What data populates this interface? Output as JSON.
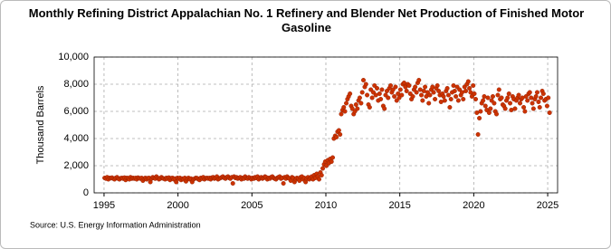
{
  "chart_data": {
    "type": "scatter",
    "title": "Monthly Refining District Appalachian No. 1 Refinery and Blender Net Production of Finished Motor Gasoline",
    "ylabel": "Thousand Barrels",
    "source": "Source: U.S. Energy Information Administration",
    "color": "#cc3300",
    "grid": true,
    "xlim": [
      1994.33,
      2025.67
    ],
    "xticks": [
      1995,
      2000,
      2005,
      2010,
      2015,
      2020,
      2025
    ],
    "ylim": [
      0,
      10000
    ],
    "yticks": [
      0,
      {
        "value": 2000,
        "label": "2,000"
      },
      {
        "value": 4000,
        "label": "4,000"
      },
      {
        "value": 6000,
        "label": "6,000"
      },
      {
        "value": 8000,
        "label": "8,000"
      },
      {
        "value": 10000,
        "label": "10,000"
      }
    ],
    "x": [
      1995.04,
      1995.13,
      1995.21,
      1995.29,
      1995.38,
      1995.46,
      1995.54,
      1995.63,
      1995.71,
      1995.79,
      1995.88,
      1995.96,
      1996.04,
      1996.13,
      1996.21,
      1996.29,
      1996.38,
      1996.46,
      1996.54,
      1996.63,
      1996.71,
      1996.79,
      1996.88,
      1996.96,
      1997.04,
      1997.13,
      1997.21,
      1997.29,
      1997.38,
      1997.46,
      1997.54,
      1997.63,
      1997.71,
      1997.79,
      1997.88,
      1997.96,
      1998.04,
      1998.13,
      1998.21,
      1998.29,
      1998.38,
      1998.46,
      1998.54,
      1998.63,
      1998.71,
      1998.79,
      1998.88,
      1998.96,
      1999.04,
      1999.13,
      1999.21,
      1999.29,
      1999.38,
      1999.46,
      1999.54,
      1999.63,
      1999.71,
      1999.79,
      1999.88,
      1999.96,
      2000.04,
      2000.13,
      2000.21,
      2000.29,
      2000.38,
      2000.46,
      2000.54,
      2000.63,
      2000.71,
      2000.79,
      2000.88,
      2000.96,
      2001.04,
      2001.13,
      2001.21,
      2001.29,
      2001.38,
      2001.46,
      2001.54,
      2001.63,
      2001.71,
      2001.79,
      2001.88,
      2001.96,
      2002.04,
      2002.13,
      2002.21,
      2002.29,
      2002.38,
      2002.46,
      2002.54,
      2002.63,
      2002.71,
      2002.79,
      2002.88,
      2002.96,
      2003.04,
      2003.13,
      2003.21,
      2003.29,
      2003.38,
      2003.46,
      2003.54,
      2003.63,
      2003.71,
      2003.79,
      2003.88,
      2003.96,
      2004.04,
      2004.13,
      2004.21,
      2004.29,
      2004.38,
      2004.46,
      2004.54,
      2004.63,
      2004.71,
      2004.79,
      2004.88,
      2004.96,
      2005.04,
      2005.13,
      2005.21,
      2005.29,
      2005.38,
      2005.46,
      2005.54,
      2005.63,
      2005.71,
      2005.79,
      2005.88,
      2005.96,
      2006.04,
      2006.13,
      2006.21,
      2006.29,
      2006.38,
      2006.46,
      2006.54,
      2006.63,
      2006.71,
      2006.79,
      2006.88,
      2006.96,
      2007.04,
      2007.13,
      2007.21,
      2007.29,
      2007.38,
      2007.46,
      2007.54,
      2007.63,
      2007.71,
      2007.79,
      2007.88,
      2007.96,
      2008.04,
      2008.13,
      2008.21,
      2008.29,
      2008.38,
      2008.46,
      2008.54,
      2008.63,
      2008.71,
      2008.79,
      2008.88,
      2008.96,
      2009.04,
      2009.13,
      2009.21,
      2009.29,
      2009.38,
      2009.46,
      2009.54,
      2009.63,
      2009.71,
      2009.79,
      2009.88,
      2009.96,
      2010.04,
      2010.13,
      2010.21,
      2010.29,
      2010.38,
      2010.46,
      2010.54,
      2010.63,
      2010.71,
      2010.79,
      2010.88,
      2010.96,
      2011.04,
      2011.13,
      2011.21,
      2011.29,
      2011.38,
      2011.46,
      2011.54,
      2011.63,
      2011.71,
      2011.79,
      2011.88,
      2011.96,
      2012.04,
      2012.13,
      2012.21,
      2012.29,
      2012.38,
      2012.46,
      2012.54,
      2012.63,
      2012.71,
      2012.79,
      2012.88,
      2012.96,
      2013.04,
      2013.13,
      2013.21,
      2013.29,
      2013.38,
      2013.46,
      2013.54,
      2013.63,
      2013.71,
      2013.79,
      2013.88,
      2013.96,
      2014.04,
      2014.13,
      2014.21,
      2014.29,
      2014.38,
      2014.46,
      2014.54,
      2014.63,
      2014.71,
      2014.79,
      2014.88,
      2014.96,
      2015.04,
      2015.13,
      2015.21,
      2015.29,
      2015.38,
      2015.46,
      2015.54,
      2015.63,
      2015.71,
      2015.79,
      2015.88,
      2015.96,
      2016.04,
      2016.13,
      2016.21,
      2016.29,
      2016.38,
      2016.46,
      2016.54,
      2016.63,
      2016.71,
      2016.79,
      2016.88,
      2016.96,
      2017.04,
      2017.13,
      2017.21,
      2017.29,
      2017.38,
      2017.46,
      2017.54,
      2017.63,
      2017.71,
      2017.79,
      2017.88,
      2017.96,
      2018.04,
      2018.13,
      2018.21,
      2018.29,
      2018.38,
      2018.46,
      2018.54,
      2018.63,
      2018.71,
      2018.79,
      2018.88,
      2018.96,
      2019.04,
      2019.13,
      2019.21,
      2019.29,
      2019.38,
      2019.46,
      2019.54,
      2019.63,
      2019.71,
      2019.79,
      2019.88,
      2019.96,
      2020.04,
      2020.13,
      2020.21,
      2020.29,
      2020.38,
      2020.46,
      2020.54,
      2020.63,
      2020.71,
      2020.79,
      2020.88,
      2020.96,
      2021.04,
      2021.13,
      2021.21,
      2021.29,
      2021.38,
      2021.46,
      2021.54,
      2021.63,
      2021.71,
      2021.79,
      2021.88,
      2021.96,
      2022.04,
      2022.13,
      2022.21,
      2022.29,
      2022.38,
      2022.46,
      2022.54,
      2022.63,
      2022.71,
      2022.79,
      2022.88,
      2022.96,
      2023.04,
      2023.13,
      2023.21,
      2023.29,
      2023.38,
      2023.46,
      2023.54,
      2023.63,
      2023.71,
      2023.79,
      2023.88,
      2023.96,
      2024.04,
      2024.13,
      2024.21,
      2024.29,
      2024.38,
      2024.46,
      2024.54,
      2024.63,
      2024.71,
      2024.79,
      2024.88,
      2024.96,
      2025.04,
      2025.13
    ],
    "values": [
      1100,
      1050,
      1150,
      1000,
      1100,
      1080,
      1120,
      1050,
      1000,
      1100,
      1150,
      1050,
      1000,
      1080,
      1100,
      1050,
      1120,
      950,
      1100,
      1080,
      1000,
      1150,
      1050,
      1100,
      1050,
      1100,
      1000,
      1120,
      1080,
      1050,
      1100,
      900,
      1050,
      1100,
      1000,
      1080,
      1100,
      800,
      1050,
      1150,
      1100,
      1050,
      1200,
      1100,
      1000,
      1050,
      1150,
      1080,
      1050,
      1000,
      1100,
      1050,
      1120,
      950,
      1080,
      1100,
      1000,
      1050,
      800,
      1100,
      1050,
      1100,
      950,
      1050,
      1000,
      1100,
      850,
      1050,
      1100,
      1000,
      1050,
      800,
      1000,
      1050,
      1100,
      1080,
      1000,
      950,
      1100,
      1050,
      1150,
      1000,
      1080,
      1100,
      1050,
      1100,
      1000,
      1120,
      1150,
      1050,
      1100,
      1200,
      1000,
      1050,
      1100,
      1150,
      1200,
      1100,
      1050,
      1150,
      1200,
      1100,
      1050,
      1150,
      700,
      1200,
      1100,
      1150,
      1050,
      1100,
      1150,
      1000,
      1100,
      1050,
      1200,
      1100,
      1050,
      1150,
      1100,
      1000,
      1100,
      1050,
      1150,
      1100,
      1200,
      1000,
      1100,
      1150,
      1050,
      1100,
      1200,
      1150,
      1000,
      1100,
      1050,
      1150,
      1200,
      1100,
      1050,
      1000,
      1100,
      1150,
      1200,
      1050,
      1100,
      700,
      1150,
      1050,
      1200,
      1100,
      1050,
      900,
      1150,
      1100,
      800,
      1000,
      1100,
      1050,
      900,
      1150,
      1200,
      1000,
      1100,
      800,
      1050,
      1150,
      1000,
      1100,
      1200,
      1000,
      1300,
      1100,
      1400,
      1200,
      1000,
      1500,
      1300,
      1800,
      2100,
      2300,
      2000,
      2400,
      2200,
      2500,
      2300,
      2600,
      4000,
      4200,
      4100,
      4500,
      4600,
      4300,
      5800,
      6100,
      6300,
      6000,
      6600,
      6900,
      7100,
      7300,
      6400,
      6200,
      5800,
      6000,
      6500,
      6200,
      6800,
      7000,
      6600,
      7400,
      8300,
      7800,
      8000,
      7200,
      6500,
      6300,
      7600,
      7000,
      7400,
      7900,
      7200,
      7700,
      6800,
      7300,
      6900,
      7600,
      6400,
      6200,
      7200,
      7500,
      7000,
      7700,
      7900,
      7400,
      7600,
      7100,
      7800,
      6800,
      7300,
      7000,
      7600,
      7200,
      8000,
      8100,
      7800,
      7500,
      8000,
      7900,
      7300,
      6900,
      7100,
      7600,
      7800,
      7400,
      8100,
      8300,
      7600,
      7200,
      6800,
      7500,
      7800,
      7100,
      7400,
      6600,
      7200,
      7600,
      7800,
      7400,
      6900,
      7700,
      7900,
      7500,
      7200,
      6700,
      7300,
      7100,
      6800,
      7500,
      7700,
      7200,
      6300,
      6900,
      7400,
      7900,
      7500,
      7100,
      7800,
      6800,
      7600,
      7200,
      7400,
      6900,
      7800,
      7500,
      8000,
      8200,
      7700,
      7400,
      7100,
      7900,
      7300,
      6900,
      5900,
      4300,
      5500,
      6000,
      6600,
      6800,
      7100,
      6400,
      6100,
      7000,
      5900,
      6200,
      6800,
      7100,
      6600,
      6000,
      5800,
      7200,
      7600,
      6900,
      7000,
      6500,
      6400,
      6200,
      6800,
      7000,
      7300,
      6600,
      6100,
      7100,
      6900,
      6200,
      6800,
      7000,
      7200,
      6600,
      6900,
      7000,
      6300,
      6000,
      7100,
      6800,
      7300,
      7400,
      7000,
      6600,
      6200,
      6900,
      7100,
      7400,
      6700,
      6300,
      7000,
      7500,
      7300,
      6800,
      6900,
      6400,
      7000,
      5900
    ]
  }
}
